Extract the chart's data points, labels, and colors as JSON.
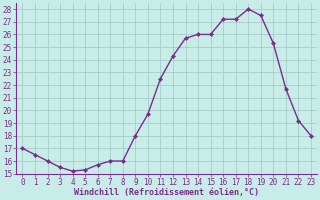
{
  "x": [
    0,
    1,
    2,
    3,
    4,
    5,
    6,
    7,
    8,
    9,
    10,
    11,
    12,
    13,
    14,
    15,
    16,
    17,
    18,
    19,
    20,
    21,
    22,
    23
  ],
  "y": [
    17.0,
    16.5,
    16.0,
    15.5,
    15.2,
    15.3,
    15.7,
    16.0,
    16.0,
    18.0,
    19.7,
    22.5,
    24.3,
    25.7,
    26.0,
    26.0,
    27.2,
    27.2,
    28.0,
    27.5,
    25.3,
    21.7,
    19.2,
    18.0
  ],
  "line_color": "#7B2D8B",
  "marker": "D",
  "markersize": 2.0,
  "linewidth": 1.0,
  "bg_color": "#C8ECE8",
  "grid_color": "#A0C8C4",
  "xlabel": "Windchill (Refroidissement éolien,°C)",
  "xlabel_color": "#7B2D8B",
  "xlabel_fontsize": 6.0,
  "tick_color": "#7B2D8B",
  "tick_fontsize": 5.5,
  "ylim": [
    15,
    28.5
  ],
  "yticks": [
    15,
    16,
    17,
    18,
    19,
    20,
    21,
    22,
    23,
    24,
    25,
    26,
    27,
    28
  ],
  "xtick_labels": [
    "0",
    "1",
    "2",
    "3",
    "4",
    "5",
    "6",
    "7",
    "8",
    "9",
    "10",
    "11",
    "12",
    "13",
    "14",
    "15",
    "16",
    "17",
    "18",
    "19",
    "20",
    "21",
    "22",
    "23"
  ],
  "xlim": [
    -0.5,
    23.5
  ]
}
